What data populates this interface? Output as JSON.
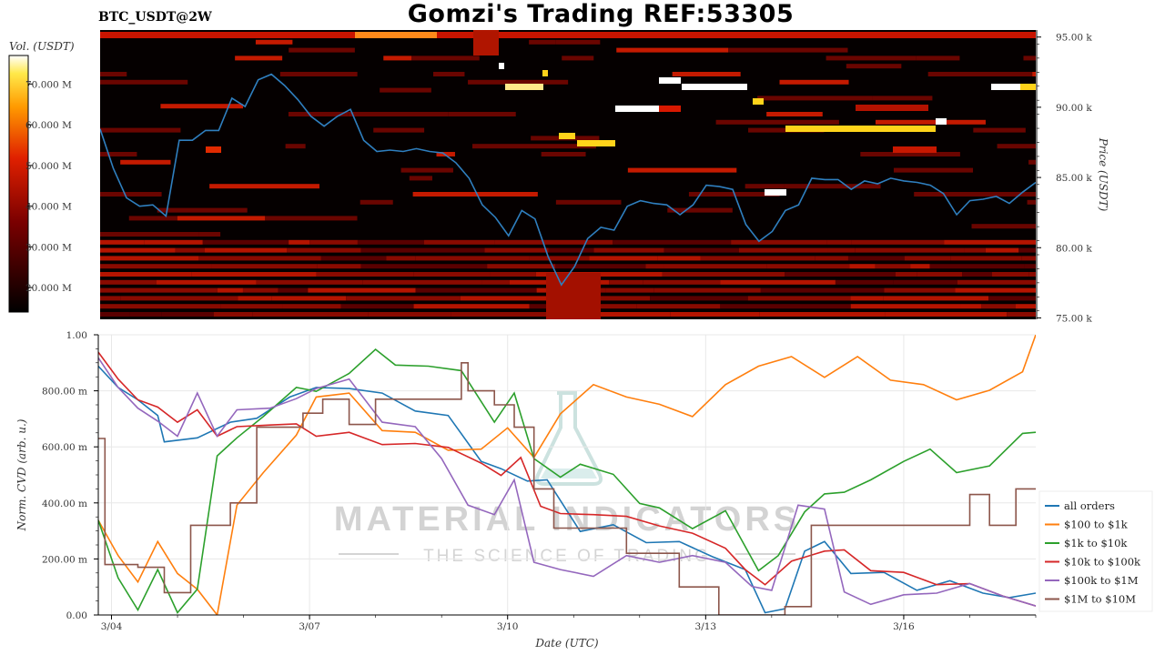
{
  "title": "Gomzi's Trading REF:53305",
  "symbol": "BTC_USDT@2W",
  "watermark": {
    "main": "MATERIAL INDICATORS",
    "sub": "THE SCIENCE OF TRADING"
  },
  "colors": {
    "price_line": "#2f7fbf",
    "heat_low": "#000000",
    "heat_mid": "#cc1a00",
    "heat_high": "#ffe000",
    "heat_max": "#ffffff"
  },
  "chart_data": [
    {
      "type": "heatmap",
      "name": "orderbook-heatmap",
      "colorbar": {
        "label": "Vol. (USDT)",
        "ticks": [
          "20.000 M",
          "30.000 M",
          "40.000 M",
          "50.000 M",
          "60.000 M",
          "70.000 M"
        ],
        "range": [
          14,
          77
        ]
      },
      "y_axis": {
        "label": "Price (USDT)",
        "ticks": [
          "75.00 k",
          "80.00 k",
          "85.00 k",
          "90.00 k",
          "95.00 k"
        ],
        "tick_values": [
          75,
          80,
          85,
          90,
          95
        ],
        "range": [
          74.9,
          95.5
        ],
        "side": "right"
      },
      "price_series": {
        "x": [
          0,
          0.2,
          0.4,
          0.6,
          0.8,
          1.0,
          1.2,
          1.4,
          1.6,
          1.8,
          2.0,
          2.2,
          2.4,
          2.6,
          2.8,
          3.0,
          3.2,
          3.4,
          3.6,
          3.8,
          4.0,
          4.2,
          4.4,
          4.6,
          4.8,
          5.0,
          5.2,
          5.4,
          5.6,
          5.8,
          6.0,
          6.2,
          6.4,
          6.6,
          6.8,
          7.0,
          7.2,
          7.4,
          7.6,
          7.8,
          8.0,
          8.2,
          8.4,
          8.6,
          8.8,
          9.0,
          9.2,
          9.4,
          9.6,
          9.8,
          10.0,
          10.2,
          10.4,
          10.6,
          10.8,
          11.0,
          11.2,
          11.4,
          11.6,
          11.8,
          12.0,
          12.2,
          12.4,
          12.6,
          12.8,
          13.0,
          13.2,
          13.4,
          13.6,
          13.8,
          14.0,
          14.2
        ],
        "y": [
          88.3,
          85.8,
          83.4,
          83.1,
          82.9,
          82.4,
          87.5,
          87.8,
          88.2,
          88.5,
          90.5,
          90.2,
          91.8,
          92.5,
          91.4,
          90.7,
          89.2,
          88.8,
          89.2,
          90.0,
          87.5,
          87.0,
          86.8,
          87.0,
          86.9,
          87.0,
          86.6,
          86.2,
          84.8,
          83.2,
          82.0,
          81.0,
          82.5,
          82.2,
          79.2,
          77.5,
          78.5,
          80.8,
          81.3,
          81.4,
          82.8,
          83.5,
          83.0,
          83.2,
          82.2,
          83.2,
          84.3,
          84.5,
          84.0,
          81.8,
          80.3,
          81.3,
          82.5,
          83.2,
          84.8,
          85.0,
          84.7,
          84.3,
          84.6,
          84.7,
          84.8,
          84.9,
          84.5,
          84.6,
          83.7,
          82.5,
          83.2,
          83.6,
          83.5,
          83.3,
          83.8,
          84.8
        ]
      }
    },
    {
      "type": "line",
      "name": "normalized-cvd",
      "y_axis": {
        "label": "Norm. CVD (arb. u.)",
        "ticks": [
          "0.00",
          "200.00 m",
          "400.00 m",
          "600.00 m",
          "800.00 m",
          "1.00"
        ],
        "tick_values": [
          0,
          0.2,
          0.4,
          0.6,
          0.8,
          1.0
        ],
        "range": [
          0,
          1.0
        ]
      },
      "x_axis": {
        "label": "Date (UTC)",
        "ticks": [
          "3/04",
          "3/07",
          "3/10",
          "3/13",
          "3/16"
        ],
        "tick_values": [
          0.2,
          3.2,
          6.2,
          9.2,
          12.2
        ],
        "range": [
          0,
          14.2
        ]
      },
      "legend_position": "right",
      "series": [
        {
          "name": "all orders",
          "color": "#1f77b4",
          "x": [
            0,
            0.3,
            0.6,
            0.9,
            1.0,
            1.5,
            2.0,
            2.4,
            2.9,
            3.3,
            3.8,
            4.3,
            4.8,
            5.3,
            5.8,
            6.1,
            6.5,
            6.8,
            7.3,
            7.8,
            8.3,
            8.8,
            9.3,
            9.8,
            10.1,
            10.4,
            10.7,
            11.0,
            11.4,
            11.9,
            12.4,
            12.9,
            13.4,
            13.8,
            14.2
          ],
          "y": [
            0.9,
            0.8,
            0.78,
            0.7,
            0.63,
            0.62,
            0.7,
            0.69,
            0.79,
            0.8,
            0.82,
            0.78,
            0.74,
            0.7,
            0.56,
            0.51,
            0.49,
            0.47,
            0.31,
            0.31,
            0.27,
            0.25,
            0.22,
            0.15,
            0.02,
            0.01,
            0.24,
            0.25,
            0.16,
            0.14,
            0.1,
            0.11,
            0.09,
            0.05,
            0.09
          ]
        },
        {
          "name": "$100 to $1k",
          "color": "#ff7f0e",
          "x": [
            0,
            0.3,
            0.6,
            0.9,
            1.2,
            1.5,
            1.8,
            2.1,
            2.5,
            3.0,
            3.3,
            3.8,
            4.3,
            4.8,
            5.3,
            5.8,
            6.2,
            6.6,
            7.0,
            7.5,
            8.0,
            8.5,
            9.0,
            9.5,
            10.0,
            10.5,
            11.0,
            11.5,
            12.0,
            12.5,
            13.0,
            13.5,
            14.0,
            14.2
          ],
          "y": [
            0.35,
            0.2,
            0.13,
            0.25,
            0.16,
            0.08,
            0.0,
            0.38,
            0.52,
            0.63,
            0.79,
            0.78,
            0.67,
            0.64,
            0.6,
            0.58,
            0.68,
            0.55,
            0.73,
            0.81,
            0.79,
            0.74,
            0.72,
            0.81,
            0.9,
            0.91,
            0.86,
            0.91,
            0.85,
            0.81,
            0.78,
            0.79,
            0.88,
            1.0
          ]
        },
        {
          "name": "$1k to $10k",
          "color": "#2ca02c",
          "x": [
            0,
            0.3,
            0.6,
            0.9,
            1.2,
            1.5,
            1.8,
            2.1,
            2.5,
            3.0,
            3.3,
            3.8,
            4.2,
            4.5,
            5.0,
            5.5,
            6.0,
            6.3,
            6.6,
            7.0,
            7.3,
            7.8,
            8.2,
            8.5,
            9.0,
            9.5,
            10.0,
            10.3,
            10.7,
            11.0,
            11.3,
            11.7,
            12.2,
            12.6,
            13.0,
            13.5,
            14.0,
            14.2
          ],
          "y": [
            0.35,
            0.12,
            0.03,
            0.15,
            0.02,
            0.08,
            0.58,
            0.62,
            0.72,
            0.8,
            0.81,
            0.85,
            0.96,
            0.88,
            0.9,
            0.86,
            0.7,
            0.78,
            0.57,
            0.48,
            0.55,
            0.49,
            0.41,
            0.37,
            0.32,
            0.36,
            0.17,
            0.2,
            0.38,
            0.42,
            0.45,
            0.47,
            0.56,
            0.58,
            0.52,
            0.52,
            0.66,
            0.64
          ]
        },
        {
          "name": "$10k to $100k",
          "color": "#d62728",
          "x": [
            0,
            0.3,
            0.6,
            0.9,
            1.2,
            1.5,
            1.8,
            2.1,
            2.6,
            3.0,
            3.3,
            3.8,
            4.3,
            4.8,
            5.3,
            5.8,
            6.1,
            6.4,
            6.7,
            7.0,
            7.5,
            8.0,
            8.5,
            9.0,
            9.5,
            9.8,
            10.1,
            10.5,
            11.0,
            11.3,
            11.7,
            12.2,
            12.7,
            13.2,
            13.7,
            14.2
          ],
          "y": [
            0.95,
            0.83,
            0.78,
            0.73,
            0.7,
            0.72,
            0.65,
            0.66,
            0.69,
            0.67,
            0.65,
            0.64,
            0.62,
            0.6,
            0.61,
            0.53,
            0.51,
            0.55,
            0.4,
            0.35,
            0.37,
            0.34,
            0.33,
            0.28,
            0.25,
            0.15,
            0.12,
            0.18,
            0.24,
            0.22,
            0.17,
            0.14,
            0.12,
            0.1,
            0.08,
            0.02
          ]
        },
        {
          "name": "$100k to $1M",
          "color": "#9467bd",
          "x": [
            0,
            0.3,
            0.6,
            0.9,
            1.2,
            1.5,
            1.8,
            2.1,
            2.6,
            3.0,
            3.3,
            3.8,
            4.3,
            4.8,
            5.2,
            5.6,
            6.0,
            6.3,
            6.6,
            7.0,
            7.5,
            8.0,
            8.5,
            9.0,
            9.5,
            9.9,
            10.2,
            10.6,
            11.0,
            11.3,
            11.7,
            12.2,
            12.7,
            13.2,
            13.7,
            14.2
          ],
          "y": [
            0.93,
            0.8,
            0.75,
            0.68,
            0.65,
            0.78,
            0.65,
            0.72,
            0.75,
            0.76,
            0.82,
            0.83,
            0.7,
            0.66,
            0.57,
            0.38,
            0.37,
            0.47,
            0.2,
            0.15,
            0.15,
            0.2,
            0.2,
            0.2,
            0.2,
            0.09,
            0.1,
            0.38,
            0.39,
            0.07,
            0.05,
            0.06,
            0.09,
            0.1,
            0.08,
            0.02
          ]
        },
        {
          "name": "$1M to $10M",
          "color": "#8c564b",
          "x": [
            0,
            0.05,
            0.1,
            0.6,
            1.0,
            1.4,
            1.6,
            2.0,
            2.4,
            2.8,
            3.1,
            3.4,
            3.8,
            4.2,
            4.6,
            5.0,
            5.5,
            5.6,
            6.0,
            6.3,
            6.6,
            6.9,
            7.5,
            8.0,
            8.4,
            8.8,
            9.4,
            10.0,
            10.4,
            10.8,
            11.2,
            11.5,
            12.0,
            12.4,
            12.8,
            13.2,
            13.5,
            13.9,
            14.2
          ],
          "y": [
            0.63,
            0.63,
            0.18,
            0.17,
            0.08,
            0.32,
            0.32,
            0.4,
            0.67,
            0.67,
            0.72,
            0.77,
            0.68,
            0.77,
            0.77,
            0.77,
            0.9,
            0.8,
            0.75,
            0.67,
            0.45,
            0.31,
            0.31,
            0.22,
            0.22,
            0.1,
            0.0,
            0.0,
            0.03,
            0.32,
            0.32,
            0.32,
            0.32,
            0.32,
            0.32,
            0.43,
            0.32,
            0.45,
            0.45
          ]
        }
      ]
    }
  ]
}
